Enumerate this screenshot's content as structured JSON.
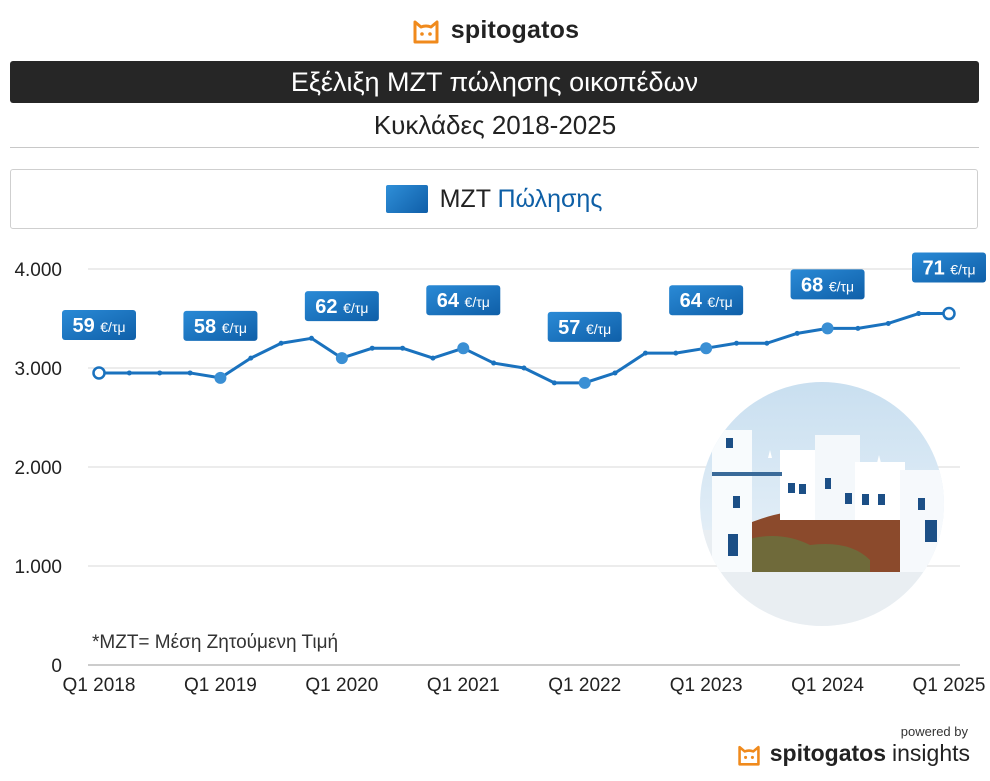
{
  "brand": {
    "name": "spitogatos",
    "logo_icon": "cat-head-icon",
    "logo_color": "#f08a1c"
  },
  "header": {
    "title": "Εξέλιξη ΜΖΤ πώλησης οικοπέδων",
    "subtitle": "Κυκλάδες 2018-2025"
  },
  "legend": {
    "prefix": "ΜΖΤ",
    "highlight": "Πώλησης"
  },
  "note": "*ΜΖΤ= Μέση Ζητούμενη Τιμή",
  "footer": {
    "powered_by": "powered by",
    "brand": "spitogatos",
    "suffix": "insights"
  },
  "colors": {
    "line": "#1a72be",
    "label_bg": "#1c74c2",
    "grid": "#d9d9d9"
  },
  "chart_data": {
    "type": "line",
    "title": "Εξέλιξη ΜΖΤ πώλησης οικοπέδων",
    "subtitle": "Κυκλάδες 2018-2025",
    "xlabel": "",
    "ylabel": "",
    "ylim": [
      0,
      4000
    ],
    "yticks": [
      0,
      1000,
      2000,
      3000,
      4000
    ],
    "ytick_labels": [
      "0",
      "1.000",
      "2.000",
      "3.000",
      "4.000"
    ],
    "xtick_labels": [
      "Q1 2018",
      "Q1 2019",
      "Q1 2020",
      "Q1 2021",
      "Q1 2022",
      "Q1 2023",
      "Q1 2024",
      "Q1 2025"
    ],
    "grid": true,
    "x": [
      "Q1 2018",
      "Q2 2018",
      "Q3 2018",
      "Q4 2018",
      "Q1 2019",
      "Q2 2019",
      "Q3 2019",
      "Q4 2019",
      "Q1 2020",
      "Q2 2020",
      "Q3 2020",
      "Q4 2020",
      "Q1 2021",
      "Q2 2021",
      "Q3 2021",
      "Q4 2021",
      "Q1 2022",
      "Q2 2022",
      "Q3 2022",
      "Q4 2022",
      "Q1 2023",
      "Q2 2023",
      "Q3 2023",
      "Q4 2023",
      "Q1 2024",
      "Q2 2024",
      "Q3 2024",
      "Q4 2024",
      "Q1 2025"
    ],
    "series": [
      {
        "name": "ΜΖΤ Πώλησης",
        "values": [
          2950,
          2950,
          2950,
          2950,
          2900,
          3100,
          3250,
          3300,
          3100,
          3200,
          3200,
          3100,
          3200,
          3050,
          3000,
          2850,
          2850,
          2950,
          3150,
          3150,
          3200,
          3250,
          3250,
          3350,
          3400,
          3400,
          3450,
          3550,
          3550
        ]
      }
    ],
    "annotations": [
      {
        "x": "Q1 2018",
        "value": "59",
        "unit": "€/τμ"
      },
      {
        "x": "Q1 2019",
        "value": "58",
        "unit": "€/τμ"
      },
      {
        "x": "Q1 2020",
        "value": "62",
        "unit": "€/τμ"
      },
      {
        "x": "Q1 2021",
        "value": "64",
        "unit": "€/τμ"
      },
      {
        "x": "Q1 2022",
        "value": "57",
        "unit": "€/τμ"
      },
      {
        "x": "Q1 2023",
        "value": "64",
        "unit": "€/τμ"
      },
      {
        "x": "Q1 2024",
        "value": "68",
        "unit": "€/τμ"
      },
      {
        "x": "Q1 2025",
        "value": "71",
        "unit": "€/τμ"
      }
    ]
  }
}
